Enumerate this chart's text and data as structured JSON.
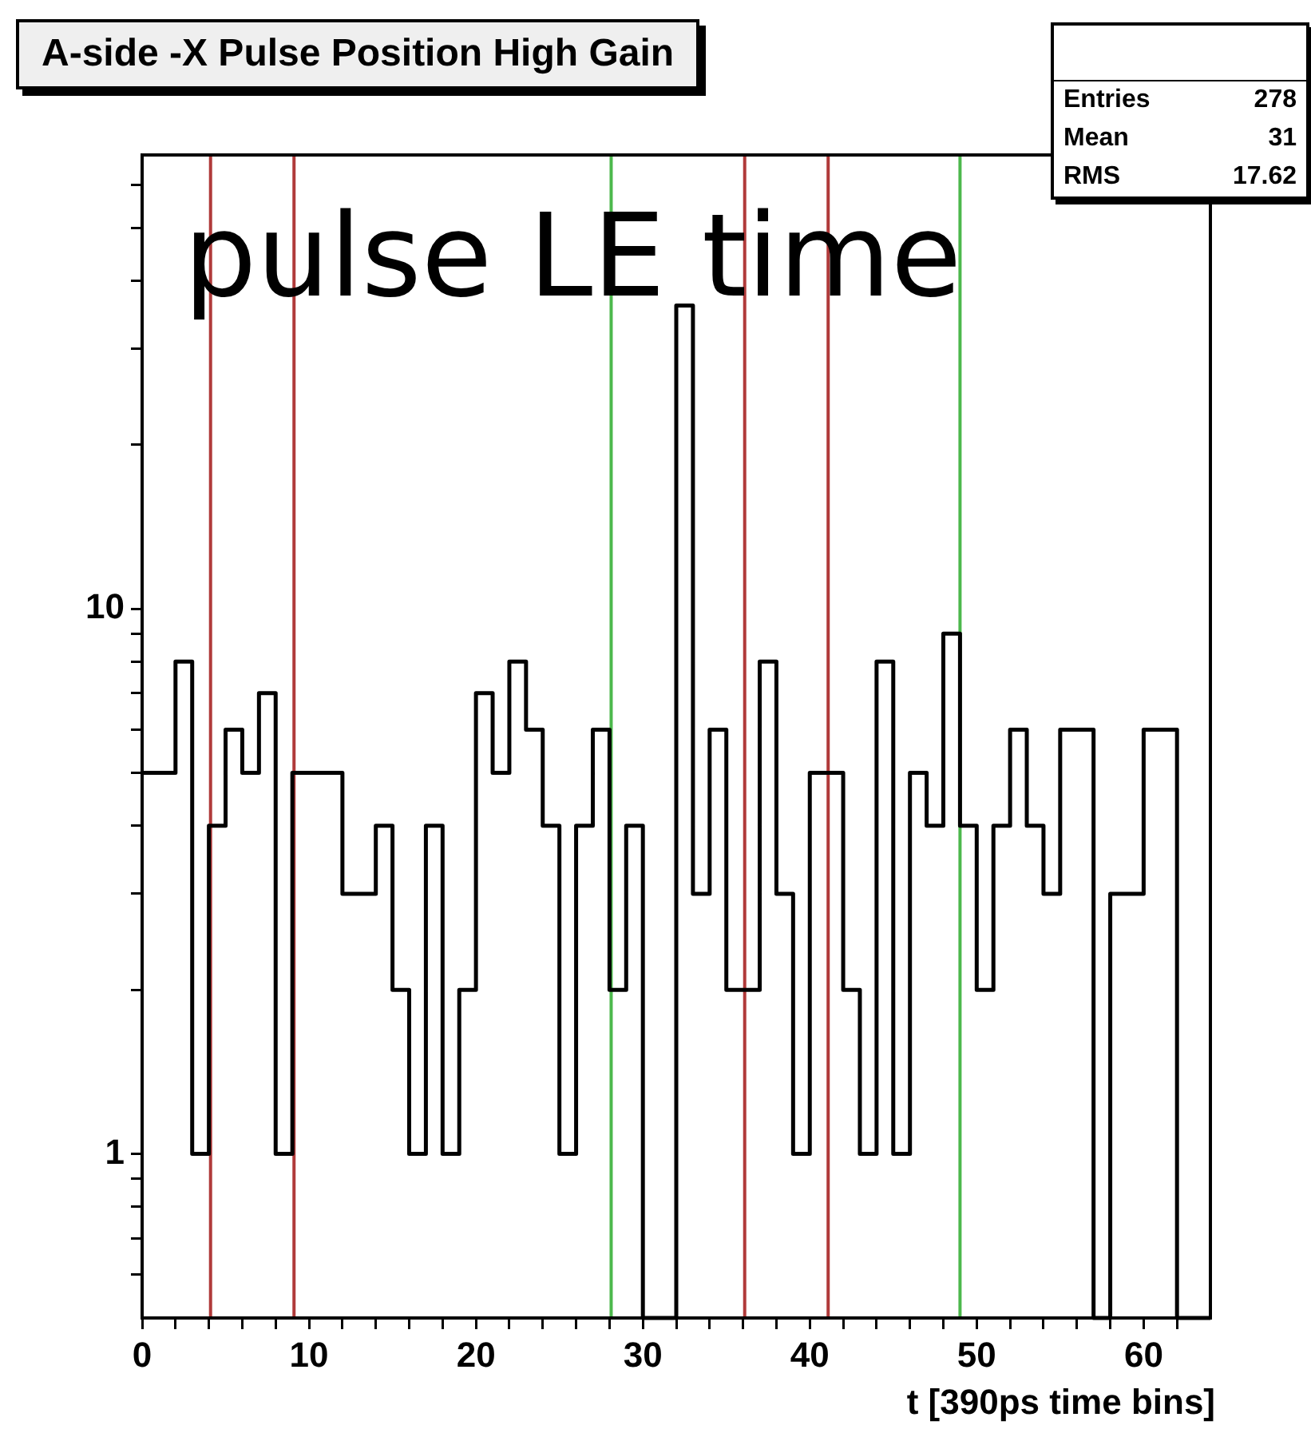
{
  "chart_data": {
    "type": "histogram",
    "title": "A-side -X Pulse Position High Gain",
    "xlabel": "t [390ps time bins]",
    "bins": [
      0,
      1,
      2,
      3,
      4,
      5,
      6,
      7,
      8,
      9,
      10,
      11,
      12,
      13,
      14,
      15,
      16,
      17,
      18,
      19,
      20,
      21,
      22,
      23,
      24,
      25,
      26,
      27,
      28,
      29,
      30,
      31,
      32,
      33,
      34,
      35,
      36,
      37,
      38,
      39,
      40,
      41,
      42,
      43,
      44,
      45,
      46,
      47,
      48,
      49,
      50,
      51,
      52,
      53,
      54,
      55,
      56,
      57,
      58,
      59,
      60,
      61,
      62,
      63,
      64
    ],
    "values": [
      5,
      5,
      8,
      1,
      4,
      6,
      5,
      7,
      1,
      5,
      5,
      5,
      3,
      3,
      4,
      2,
      1,
      4,
      1,
      2,
      7,
      5,
      8,
      6,
      4,
      1,
      4,
      6,
      2,
      4,
      null,
      null,
      36,
      3,
      6,
      2,
      2,
      8,
      3,
      1,
      5,
      5,
      2,
      1,
      8,
      1,
      5,
      4,
      9,
      4,
      2,
      4,
      6,
      4,
      3,
      6,
      6,
      null,
      3,
      3,
      6,
      6,
      null,
      null
    ],
    "color": "#000000",
    "log": "y",
    "grid": false,
    "legend": false,
    "xlim": [
      0,
      64
    ],
    "ylim": [
      0.5,
      68
    ],
    "xticks": [
      0,
      {
        "value": 2,
        "label": null
      },
      {
        "value": 4,
        "label": null
      },
      {
        "value": 6,
        "label": null
      },
      {
        "value": 8,
        "label": null
      },
      10,
      {
        "value": 12,
        "label": null
      },
      {
        "value": 14,
        "label": null
      },
      {
        "value": 16,
        "label": null
      },
      {
        "value": 18,
        "label": null
      },
      20,
      {
        "value": 22,
        "label": null
      },
      {
        "value": 24,
        "label": null
      },
      {
        "value": 26,
        "label": null
      },
      {
        "value": 28,
        "label": null
      },
      30,
      {
        "value": 32,
        "label": null
      },
      {
        "value": 34,
        "label": null
      },
      {
        "value": 36,
        "label": null
      },
      {
        "value": 38,
        "label": null
      },
      40,
      {
        "value": 42,
        "label": null
      },
      {
        "value": 44,
        "label": null
      },
      {
        "value": 46,
        "label": null
      },
      {
        "value": 48,
        "label": null
      },
      50,
      {
        "value": 52,
        "label": null
      },
      {
        "value": 54,
        "label": null
      },
      {
        "value": 56,
        "label": null
      },
      {
        "value": 58,
        "label": null
      },
      60,
      {
        "value": 62,
        "label": null
      }
    ],
    "yticks": [
      {
        "value": 0.6,
        "label": null
      },
      {
        "value": 0.7,
        "label": null
      },
      {
        "value": 0.8,
        "label": null
      },
      {
        "value": 0.9,
        "label": null
      },
      1,
      {
        "value": 2,
        "label": null
      },
      {
        "value": 3,
        "label": null
      },
      {
        "value": 4,
        "label": null
      },
      {
        "value": 5,
        "label": null
      },
      {
        "value": 6,
        "label": null
      },
      {
        "value": 7,
        "label": null
      },
      {
        "value": 8,
        "label": null
      },
      {
        "value": 9,
        "label": null
      },
      10,
      {
        "value": 20,
        "label": null
      },
      {
        "value": 30,
        "label": null
      },
      {
        "value": 40,
        "label": null
      },
      {
        "value": 50,
        "label": null
      },
      {
        "value": 60,
        "label": null
      }
    ],
    "ref_lines": [
      {
        "axis": "x",
        "value": 4.1,
        "color": "#b03a3a"
      },
      {
        "axis": "x",
        "value": 9.1,
        "color": "#b03a3a"
      },
      {
        "axis": "x",
        "value": 28.1,
        "color": "#4cb84c"
      },
      {
        "axis": "x",
        "value": 36.1,
        "color": "#b03a3a"
      },
      {
        "axis": "x",
        "value": 41.1,
        "color": "#b03a3a"
      },
      {
        "axis": "x",
        "value": 49,
        "color": "#4cb84c"
      }
    ],
    "annotations": [
      "pulse LE time",
      "Entries",
      "278",
      "Mean",
      "31",
      "RMS",
      "17.62"
    ]
  }
}
